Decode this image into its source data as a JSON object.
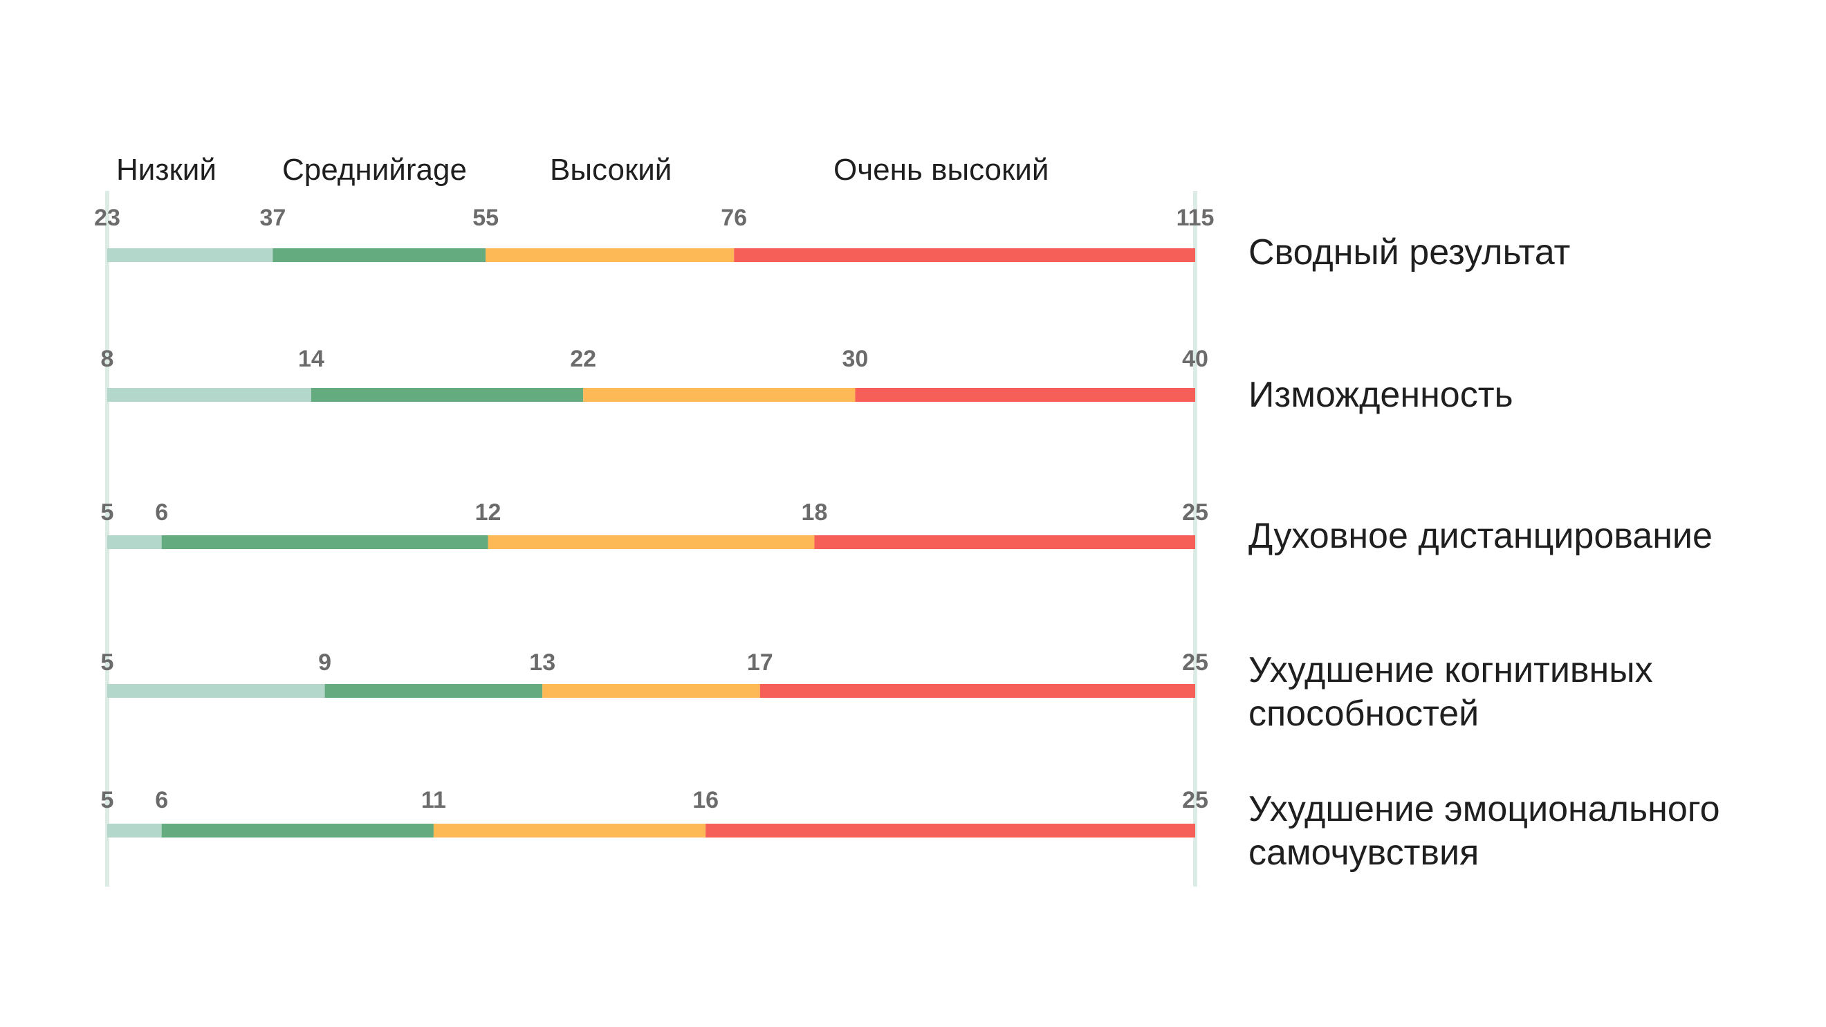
{
  "chart_data": {
    "type": "bar",
    "categories": [
      "Низкий",
      "Среднийrage",
      "Высокий",
      "Очень высокий"
    ],
    "colors": {
      "Низкий": "#b3d8cb",
      "Среднийrage": "#64ac7f",
      "Высокий": "#fdb955",
      "Очень высокий": "#f65e58",
      "guide": "#dcebe4"
    },
    "rows": [
      {
        "label": [
          "Сводный результат"
        ],
        "thresholds": [
          23,
          37,
          55,
          76,
          115
        ]
      },
      {
        "label": [
          "Изможденность"
        ],
        "thresholds": [
          8,
          14,
          22,
          30,
          40
        ]
      },
      {
        "label": [
          "Духовное дистанцирование"
        ],
        "thresholds": [
          5,
          6,
          12,
          18,
          25
        ]
      },
      {
        "label": [
          "Ухудшение когнитивных",
          "способностей"
        ],
        "thresholds": [
          5,
          9,
          13,
          17,
          25
        ]
      },
      {
        "label": [
          "Ухудшение эмоционального",
          "самочувствия"
        ],
        "thresholds": [
          5,
          6,
          11,
          16,
          25
        ]
      }
    ]
  }
}
